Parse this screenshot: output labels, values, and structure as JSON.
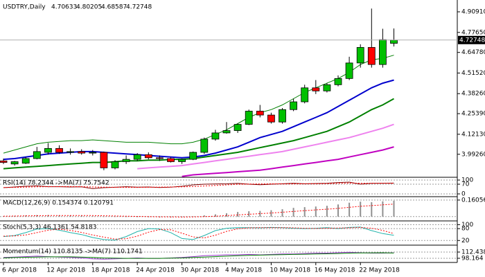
{
  "chart_data": [
    {
      "type": "candlestick",
      "title": "USDTRY,Daily",
      "categories": [
        "6 Apr 2018",
        null,
        null,
        null,
        "12 Apr 2018",
        null,
        null,
        null,
        "18 Apr 2018",
        null,
        null,
        null,
        "24 Apr 2018",
        null,
        null,
        null,
        "30 Apr 2018",
        null,
        null,
        null,
        "4 May 2018",
        null,
        null,
        null,
        "10 May 2018",
        null,
        null,
        null,
        "16 May 2018",
        null,
        null,
        null,
        "22 May 2018",
        null,
        null,
        null
      ],
      "open": [
        3.95,
        3.93,
        3.935,
        3.965,
        4.005,
        4.03,
        4.005,
        4.01,
        4.0,
        4.005,
        3.905,
        3.945,
        3.96,
        3.99,
        3.97,
        3.965,
        3.945,
        3.96,
        4.005,
        4.09,
        4.13,
        4.145,
        4.185,
        4.27,
        4.245,
        4.2,
        4.28,
        4.33,
        4.42,
        4.4,
        4.44,
        4.48,
        4.58,
        4.68,
        4.57,
        4.70633
      ],
      "high": [
        3.965,
        3.95,
        3.975,
        4.04,
        4.065,
        4.05,
        4.03,
        4.025,
        4.02,
        4.01,
        3.955,
        3.985,
        4.0,
        4.005,
        3.985,
        3.975,
        3.965,
        4.01,
        4.1,
        4.15,
        4.2,
        4.19,
        4.28,
        4.31,
        4.26,
        4.29,
        4.35,
        4.44,
        4.47,
        4.45,
        4.5,
        4.62,
        4.7,
        4.93,
        4.8,
        4.80205
      ],
      "low": [
        3.93,
        3.92,
        3.93,
        3.96,
        3.99,
        3.995,
        3.99,
        3.99,
        3.985,
        3.89,
        3.895,
        3.93,
        3.95,
        3.96,
        3.95,
        3.94,
        3.93,
        3.955,
        3.995,
        4.08,
        4.125,
        4.13,
        4.18,
        4.23,
        4.19,
        4.19,
        4.27,
        4.32,
        4.38,
        4.39,
        4.43,
        4.47,
        4.55,
        4.55,
        4.55,
        4.68587
      ],
      "close": [
        3.94,
        3.945,
        3.965,
        4.01,
        4.03,
        4.005,
        4.01,
        4.0,
        4.005,
        3.905,
        3.945,
        3.96,
        3.99,
        3.97,
        3.965,
        3.945,
        3.96,
        4.005,
        4.09,
        4.13,
        4.145,
        4.185,
        4.27,
        4.245,
        4.2,
        4.28,
        4.33,
        4.42,
        4.4,
        4.44,
        4.48,
        4.58,
        4.68,
        4.57,
        4.73,
        4.72748
      ],
      "up_color": "#00c000",
      "down_color": "#ff0000",
      "series": [
        {
          "color": "#008000",
          "width": 1,
          "values": [
            4.0,
            4.02,
            4.04,
            4.06,
            4.07,
            4.075,
            4.08,
            4.08,
            4.085,
            4.08,
            4.075,
            4.07,
            4.07,
            4.07,
            4.065,
            4.06,
            4.06,
            4.07,
            4.09,
            4.12,
            4.15,
            4.19,
            4.23,
            4.26,
            4.28,
            4.31,
            4.35,
            4.39,
            4.42,
            4.45,
            4.48,
            4.52,
            4.57,
            4.6,
            4.61,
            4.63
          ]
        },
        {
          "color": "#c000c0",
          "width": 2,
          "values": [
            null,
            null,
            null,
            null,
            null,
            null,
            null,
            null,
            null,
            null,
            null,
            null,
            null,
            null,
            null,
            null,
            3.85,
            3.86,
            3.865,
            3.87,
            3.875,
            3.88,
            3.885,
            3.89,
            3.9,
            3.91,
            3.92,
            3.93,
            3.94,
            3.95,
            3.96,
            3.975,
            3.99,
            4.005,
            4.02,
            4.04
          ]
        },
        {
          "color": "#ee82ee",
          "width": 2,
          "values": [
            null,
            null,
            null,
            null,
            null,
            null,
            null,
            null,
            null,
            null,
            null,
            null,
            3.9,
            3.905,
            3.91,
            3.915,
            3.92,
            3.93,
            3.94,
            3.95,
            3.96,
            3.97,
            3.98,
            3.99,
            4.0,
            4.01,
            4.025,
            4.04,
            4.055,
            4.07,
            4.085,
            4.1,
            4.12,
            4.14,
            4.16,
            4.185
          ]
        },
        {
          "color": "#008000",
          "width": 2,
          "values": [
            3.9,
            3.905,
            3.91,
            3.915,
            3.92,
            3.925,
            3.93,
            3.935,
            3.94,
            3.94,
            3.945,
            3.95,
            3.95,
            3.955,
            3.955,
            3.96,
            3.96,
            3.965,
            3.975,
            3.985,
            3.995,
            4.005,
            4.02,
            4.035,
            4.05,
            4.065,
            4.08,
            4.1,
            4.12,
            4.14,
            4.17,
            4.2,
            4.24,
            4.28,
            4.31,
            4.35
          ]
        },
        {
          "color": "#0000cd",
          "width": 2,
          "values": [
            3.96,
            3.965,
            3.975,
            3.985,
            3.995,
            4.0,
            4.005,
            4.01,
            4.01,
            4.005,
            4.0,
            3.995,
            3.99,
            3.985,
            3.98,
            3.975,
            3.97,
            3.975,
            3.985,
            4.0,
            4.02,
            4.04,
            4.07,
            4.1,
            4.12,
            4.14,
            4.17,
            4.2,
            4.23,
            4.26,
            4.3,
            4.34,
            4.38,
            4.42,
            4.45,
            4.47
          ]
        }
      ],
      "ylim": [
        3.849,
        4.985
      ],
      "yticks": [
        {
          "value": 4.9091,
          "label": "4.90910"
        },
        {
          "value": 4.7765,
          "label": "4.77650"
        },
        {
          "value": 4.6478,
          "label": "4.64780"
        },
        {
          "value": 4.5152,
          "label": "4.51520"
        },
        {
          "value": 4.3826,
          "label": "4.38260"
        },
        {
          "value": 4.2539,
          "label": "4.25390"
        },
        {
          "value": 4.1213,
          "label": "4.12130"
        },
        {
          "value": 3.9926,
          "label": "3.99260"
        }
      ]
    },
    {
      "type": "line",
      "label": "RSI(14) 78.2344 ->MA(7) 75.7542",
      "ylim": [
        -15,
        115
      ],
      "yticks": [
        100,
        70,
        0
      ],
      "series": [
        {
          "color": "#800000",
          "style": "line",
          "values": [
            45,
            50,
            55,
            58,
            52,
            52,
            50,
            51,
            38,
            45,
            48,
            52,
            49,
            50,
            46,
            49,
            55,
            65,
            70,
            72,
            73,
            76,
            70,
            66,
            70,
            73,
            77,
            73,
            75,
            77,
            82,
            85,
            70,
            76,
            77,
            78.2344
          ]
        },
        {
          "color": "#ff0000",
          "style": "dotted",
          "values": [
            46,
            47,
            49,
            51,
            52,
            53,
            53,
            52,
            50,
            49,
            48,
            47,
            47,
            48,
            49,
            50,
            51,
            53,
            57,
            61,
            65,
            69,
            71,
            72,
            73,
            72,
            72,
            73,
            73,
            74,
            76,
            78,
            77,
            77,
            77,
            75.7542
          ]
        }
      ]
    },
    {
      "type": "bar",
      "label": "MACD(12,26,9) 0.154374 0.120791",
      "ylim": [
        -0.035,
        0.18
      ],
      "yticks": [
        0.160561
      ],
      "series": [
        {
          "color": "#909090",
          "style": "bar",
          "values": [
            0.005,
            0.008,
            0.012,
            0.015,
            0.015,
            0.013,
            0.012,
            0.01,
            0.004,
            0.0,
            -0.003,
            -0.004,
            -0.005,
            -0.006,
            -0.008,
            -0.008,
            -0.006,
            0.002,
            0.012,
            0.022,
            0.032,
            0.045,
            0.052,
            0.055,
            0.062,
            0.072,
            0.085,
            0.092,
            0.098,
            0.105,
            0.118,
            0.135,
            0.145,
            0.14,
            0.148,
            0.154374
          ]
        },
        {
          "color": "#ff0000",
          "style": "dotted",
          "values": [
            0.004,
            0.005,
            0.007,
            0.009,
            0.01,
            0.011,
            0.011,
            0.011,
            0.01,
            0.008,
            0.006,
            0.004,
            0.002,
            0.0,
            -0.002,
            -0.003,
            -0.004,
            -0.003,
            0.0,
            0.004,
            0.01,
            0.016,
            0.023,
            0.029,
            0.035,
            0.042,
            0.05,
            0.058,
            0.065,
            0.072,
            0.08,
            0.09,
            0.1,
            0.107,
            0.114,
            0.120791
          ]
        }
      ]
    },
    {
      "type": "line",
      "label": "Stoch(5,3,3) 46.1361 54.8183",
      "ylim": [
        0,
        112
      ],
      "yticks": [
        100,
        80,
        20
      ],
      "series": [
        {
          "color": "#20b2aa",
          "style": "line",
          "values": [
            40,
            45,
            60,
            78,
            80,
            72,
            60,
            50,
            35,
            25,
            22,
            40,
            65,
            80,
            78,
            60,
            30,
            25,
            45,
            70,
            82,
            85,
            85,
            84,
            86,
            85,
            82,
            80,
            82,
            85,
            80,
            86,
            88,
            70,
            55,
            46.1361
          ]
        },
        {
          "color": "#ff0000",
          "style": "dotted",
          "values": [
            42,
            43,
            48,
            60,
            72,
            77,
            71,
            61,
            48,
            37,
            27,
            29,
            42,
            62,
            75,
            74,
            57,
            38,
            33,
            47,
            66,
            79,
            84,
            85,
            85,
            85,
            84,
            82,
            81,
            82,
            83,
            84,
            86,
            82,
            71,
            54.8183
          ]
        }
      ]
    },
    {
      "type": "line",
      "label": "Momentum(14) 110.8135 ->MA(7) 110.1741",
      "ylim": [
        90.2,
        125.1
      ],
      "yticks": [
        112.4386,
        98.164
      ],
      "series": [
        {
          "color": "#9932cc",
          "style": "line",
          "values": [
            100,
            101,
            102,
            103,
            102,
            101,
            100,
            99,
            97,
            96,
            97,
            98,
            99,
            98,
            98,
            99,
            100,
            102,
            104,
            105,
            106,
            106,
            107,
            106,
            107,
            108,
            108,
            109,
            110,
            110,
            111,
            112,
            111,
            110,
            110,
            110.8135
          ]
        },
        {
          "color": "#008000",
          "style": "line",
          "values": [
            99,
            100,
            100.5,
            101,
            101.5,
            101.5,
            101.5,
            101,
            100,
            99,
            98.5,
            98,
            98,
            98,
            98,
            98.5,
            99,
            100,
            101,
            102,
            103,
            104,
            105,
            105.5,
            106,
            106.5,
            107,
            107.5,
            108,
            108.5,
            109,
            110,
            110.5,
            110.7,
            110.8,
            110.1741
          ]
        }
      ]
    }
  ]
}
